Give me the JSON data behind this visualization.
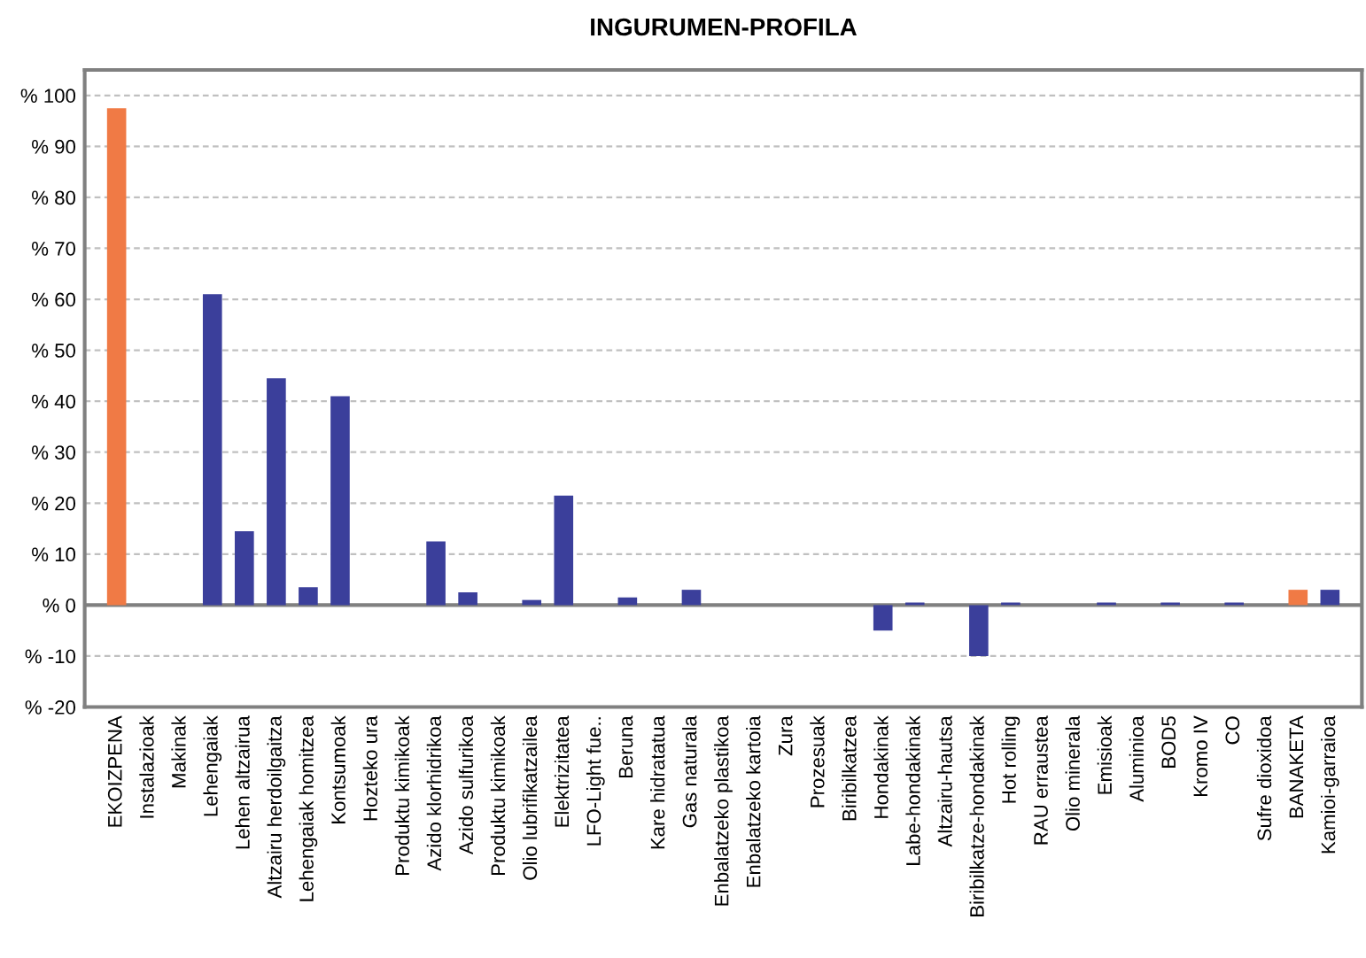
{
  "chart_data": {
    "type": "bar",
    "title": "INGURUMEN-PROFILA",
    "categories": [
      "EKOIZPENA",
      "Instalazioak",
      "Makinak",
      "Lehengaiak",
      "Lehen altzairua",
      "Altzairu herdoilgaitza",
      "Lehengaiak homitzea",
      "Kontsumoak",
      "Hozteko ura",
      "Produktu kimikoak",
      "Azido klorhidrikoa",
      "Azido sulfurikoa",
      "Produktu kimikoak",
      "Olio lubrifikatzailea",
      "Elektrizitatea",
      "LFO-Light fue..",
      "Beruna",
      "Kare hidratatua",
      "Gas naturala",
      "Enbalatzeko plastikoa",
      "Enbalatzeko kartoia",
      "Zura",
      "Prozesuak",
      "Biribilkatzea",
      "Hondakinak",
      "Labe-hondakinak",
      "Altzairu-hautsa",
      "Biribilkatze-hondakinak",
      "Hot rolling",
      "RAU erraustea",
      "Olio minerala",
      "Emisioak",
      "Aluminioa",
      "BOD5",
      "Kromo IV",
      "CO",
      "Sufre dioxidoa",
      "BANAKETA",
      "Kamioi-garraioa"
    ],
    "values": [
      97.5,
      0,
      0,
      61,
      14.5,
      44.5,
      3.5,
      41,
      0,
      0,
      12.5,
      2.5,
      0,
      1,
      21.5,
      0,
      1.5,
      0,
      3,
      0,
      0,
      0,
      0,
      0,
      -5,
      0.5,
      0,
      -10,
      0.5,
      0,
      0,
      0.5,
      0,
      0.5,
      0,
      0.5,
      0,
      3,
      3
    ],
    "colors": [
      "#f07a45",
      "#3b3f9b",
      "#3b3f9b",
      "#3b3f9b",
      "#3b3f9b",
      "#3b3f9b",
      "#3b3f9b",
      "#3b3f9b",
      "#3b3f9b",
      "#3b3f9b",
      "#3b3f9b",
      "#3b3f9b",
      "#3b3f9b",
      "#3b3f9b",
      "#3b3f9b",
      "#3b3f9b",
      "#3b3f9b",
      "#3b3f9b",
      "#3b3f9b",
      "#3b3f9b",
      "#3b3f9b",
      "#3b3f9b",
      "#3b3f9b",
      "#3b3f9b",
      "#3b3f9b",
      "#3b3f9b",
      "#3b3f9b",
      "#3b3f9b",
      "#3b3f9b",
      "#3b3f9b",
      "#3b3f9b",
      "#3b3f9b",
      "#3b3f9b",
      "#3b3f9b",
      "#3b3f9b",
      "#3b3f9b",
      "#3b3f9b",
      "#f07a45",
      "#3b3f9b"
    ],
    "ylim": [
      -20,
      105
    ],
    "yticks": [
      {
        "value": -20,
        "label": "% -20"
      },
      {
        "value": -10,
        "label": "% -10"
      },
      {
        "value": 0,
        "label": "% 0"
      },
      {
        "value": 10,
        "label": "% 10"
      },
      {
        "value": 20,
        "label": "% 20"
      },
      {
        "value": 30,
        "label": "% 30"
      },
      {
        "value": 40,
        "label": "% 40"
      },
      {
        "value": 50,
        "label": "% 50"
      },
      {
        "value": 60,
        "label": "% 60"
      },
      {
        "value": 70,
        "label": "% 70"
      },
      {
        "value": 80,
        "label": "% 80"
      },
      {
        "value": 90,
        "label": "% 90"
      },
      {
        "value": 100,
        "label": "% 100"
      }
    ],
    "grid": "y"
  }
}
